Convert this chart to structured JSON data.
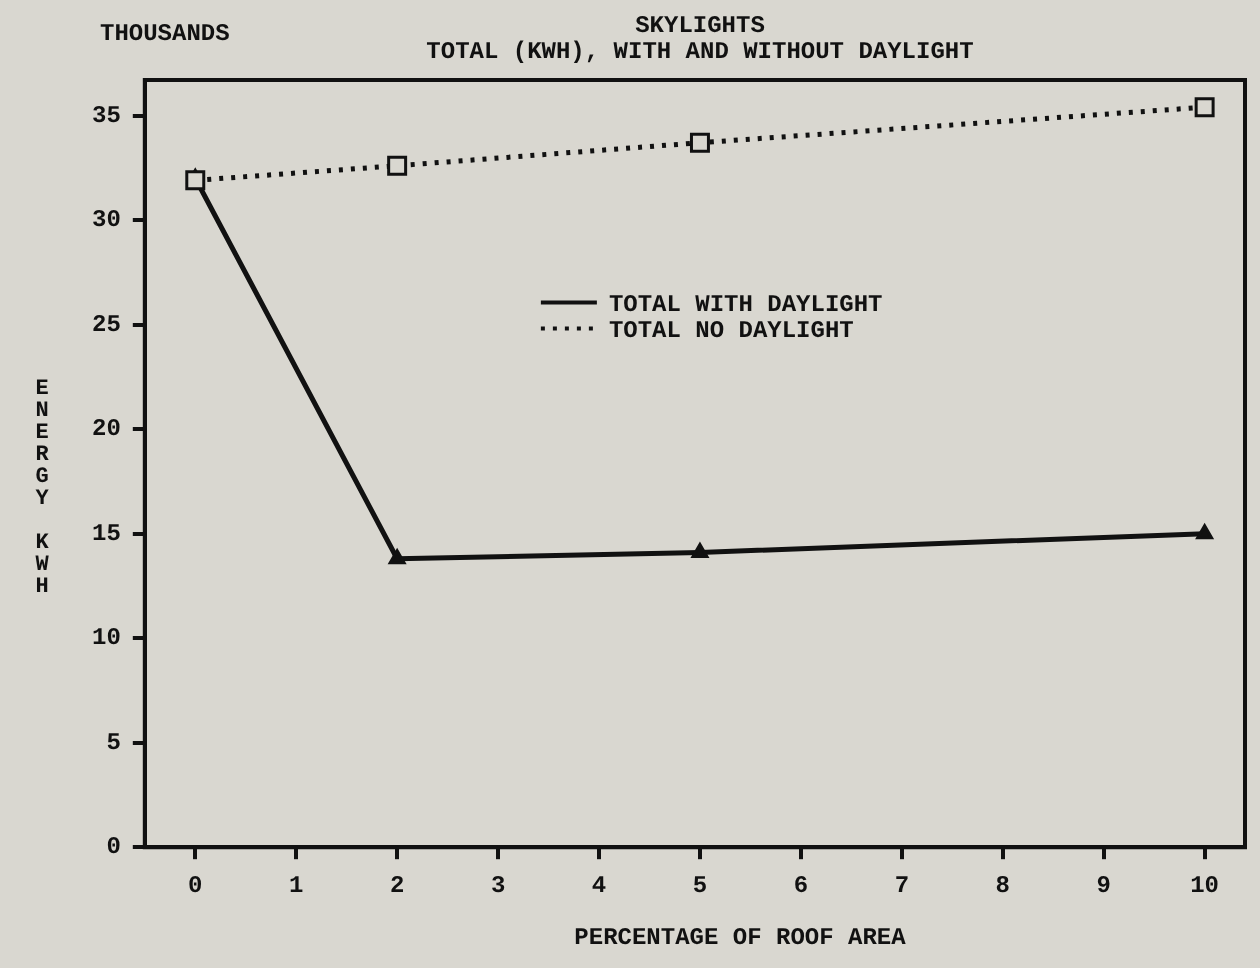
{
  "chart_data": {
    "type": "line",
    "title": "SKYLIGHTS",
    "subtitle": "TOTAL (KWH), WITH AND WITHOUT DAYLIGHT",
    "xlabel": "PERCENTAGE OF ROOF AREA",
    "ylabel": "ENERGY KWH",
    "annotations": [
      "THOUSANDS"
    ],
    "x": [
      0,
      2,
      5,
      10
    ],
    "series": [
      {
        "name": "TOTAL WITH DAYLIGHT",
        "color": "#111111",
        "values": [
          32,
          13.8,
          14.1,
          15
        ],
        "marker": "triangle",
        "line_style": "solid"
      },
      {
        "name": "TOTAL NO DAYLIGHT",
        "color": "#111111",
        "values": [
          31.9,
          32.6,
          33.7,
          35.4
        ],
        "marker": "square",
        "line_style": "dotted"
      }
    ],
    "xlim": [
      -0.5,
      10.4
    ],
    "xticks": [
      0,
      1,
      2,
      3,
      4,
      5,
      6,
      7,
      8,
      9,
      10
    ],
    "ylim": [
      0,
      36.7
    ],
    "yticks": [
      0,
      5,
      10,
      15,
      20,
      25,
      30,
      35
    ],
    "grid": false,
    "legend": "center"
  }
}
